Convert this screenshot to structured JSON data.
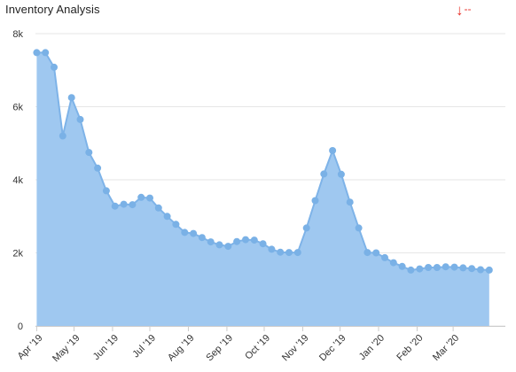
{
  "chart_data": {
    "type": "area",
    "title": "Inventory Analysis",
    "indicator": {
      "arrow": "↓",
      "value": "--",
      "color": "#e8322b"
    },
    "xlabel": "",
    "ylabel": "",
    "ylim": [
      0,
      8000
    ],
    "yticks": [
      0,
      2000,
      4000,
      6000,
      8000
    ],
    "ytick_labels": [
      "0",
      "2k",
      "4k",
      "6k",
      "8k"
    ],
    "xlim": [
      "2019-03-31",
      "2020-04-12"
    ],
    "x_axis_type": "date",
    "xtick_dates": [
      "2019-04-01",
      "2019-05-01",
      "2019-06-01",
      "2019-07-01",
      "2019-08-01",
      "2019-09-01",
      "2019-10-01",
      "2019-11-01",
      "2019-12-01",
      "2020-01-01",
      "2020-02-01",
      "2020-03-01"
    ],
    "xtick_labels": [
      "Apr '19",
      "May '19",
      "Jun '19",
      "Jul '19",
      "Aug '19",
      "Sep '19",
      "Oct '19",
      "Nov '19",
      "Dec '19",
      "Jan '20",
      "Feb '20",
      "Mar '20"
    ],
    "grid": true,
    "legend": "none",
    "colors": {
      "fill": "#9fc8f0",
      "line": "#7eb3e8",
      "marker": "#7ab1e6",
      "grid": "#e6e6e6"
    },
    "series": [
      {
        "x": [
          "2019-04-01",
          "2019-04-08",
          "2019-04-15",
          "2019-04-22",
          "2019-04-29",
          "2019-05-06",
          "2019-05-13",
          "2019-05-20",
          "2019-05-27",
          "2019-06-03",
          "2019-06-10",
          "2019-06-17",
          "2019-06-24",
          "2019-07-01",
          "2019-07-08",
          "2019-07-15",
          "2019-07-22",
          "2019-07-29",
          "2019-08-05",
          "2019-08-12",
          "2019-08-19",
          "2019-08-26",
          "2019-09-02",
          "2019-09-09",
          "2019-09-16",
          "2019-09-23",
          "2019-09-30",
          "2019-10-07",
          "2019-10-14",
          "2019-10-21",
          "2019-10-28",
          "2019-11-04",
          "2019-11-11",
          "2019-11-18",
          "2019-11-25",
          "2019-12-02",
          "2019-12-09",
          "2019-12-16",
          "2019-12-23",
          "2019-12-30",
          "2020-01-06",
          "2020-01-13",
          "2020-01-20",
          "2020-01-27",
          "2020-02-03",
          "2020-02-10",
          "2020-02-17",
          "2020-02-24",
          "2020-03-02",
          "2020-03-09",
          "2020-03-16",
          "2020-03-23",
          "2020-03-30"
        ],
        "values": [
          7480,
          7480,
          7080,
          5200,
          6250,
          5650,
          4750,
          4320,
          3700,
          3280,
          3330,
          3320,
          3520,
          3500,
          3230,
          3000,
          2780,
          2560,
          2530,
          2420,
          2300,
          2220,
          2180,
          2310,
          2360,
          2350,
          2250,
          2100,
          2020,
          2010,
          2010,
          2680,
          3430,
          4160,
          4800,
          4150,
          3390,
          2680,
          2010,
          2000,
          1870,
          1730,
          1630,
          1530,
          1560,
          1600,
          1600,
          1620,
          1610,
          1590,
          1570,
          1540,
          1530
        ]
      }
    ]
  }
}
